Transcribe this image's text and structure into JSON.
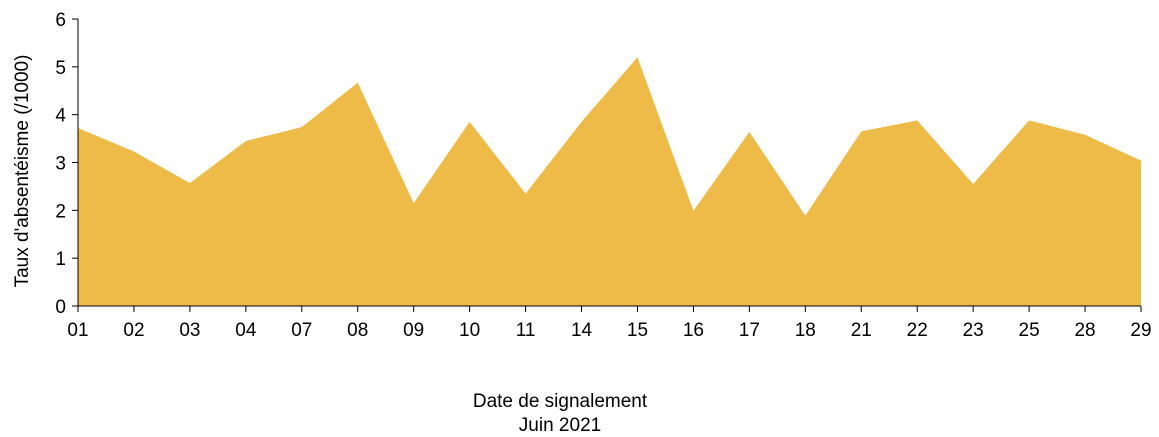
{
  "chart_data": {
    "type": "area",
    "x": [
      "01",
      "02",
      "03",
      "04",
      "07",
      "08",
      "09",
      "10",
      "11",
      "14",
      "15",
      "16",
      "17",
      "18",
      "21",
      "22",
      "23",
      "25",
      "28",
      "29"
    ],
    "series": [
      {
        "values": [
          3.72,
          3.23,
          2.57,
          3.45,
          3.74,
          4.67,
          2.15,
          3.85,
          2.35,
          3.85,
          5.2,
          1.99,
          3.64,
          1.89,
          3.65,
          3.88,
          2.55,
          3.88,
          3.58,
          3.04
        ]
      }
    ],
    "ylim": [
      0,
      6
    ],
    "yticks": [
      0,
      1,
      2,
      3,
      4,
      5,
      6
    ],
    "ylabel": "Taux d'absentéisme (/1000)",
    "xlabel": "Date de signalement",
    "xlabel_sub": "Juin 2021",
    "fill_color": "#EEBB48",
    "grid": false,
    "legend": "none"
  }
}
